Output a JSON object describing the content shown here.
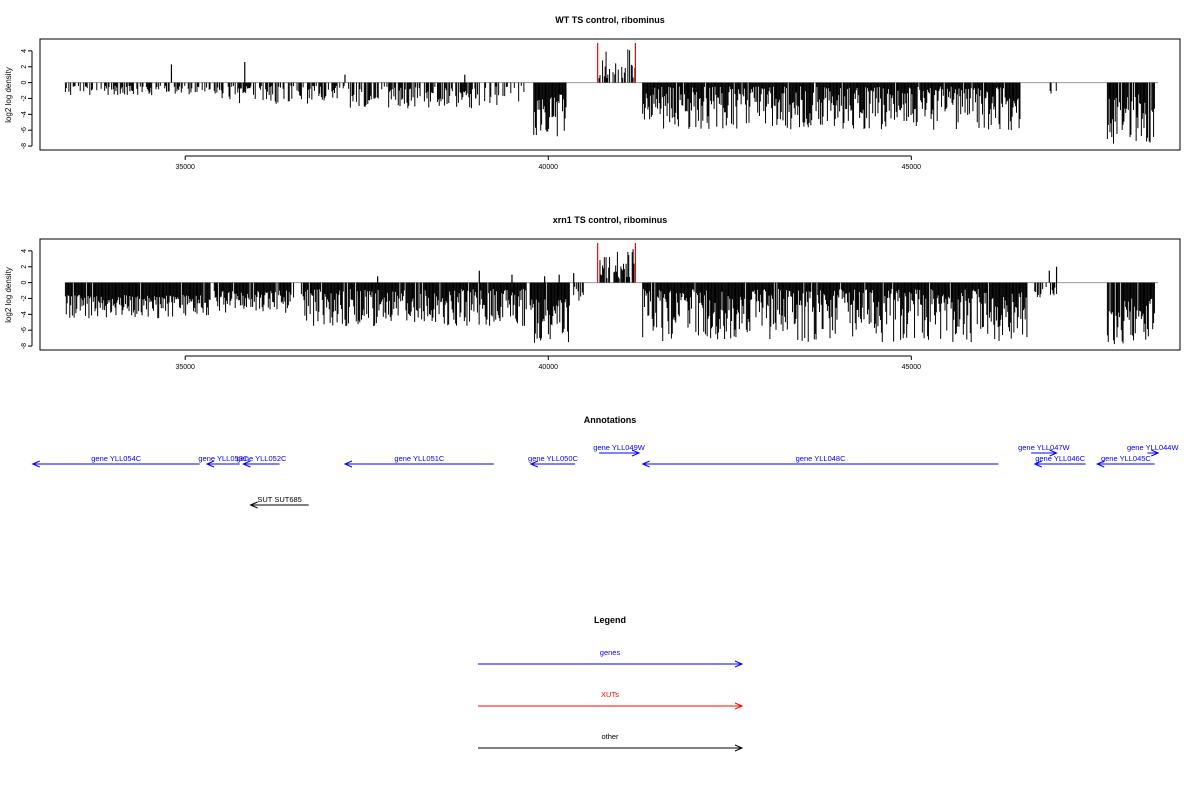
{
  "chart_data": [
    {
      "type": "bar",
      "title": "WT TS control, ribominus",
      "ylabel": "log2 log density",
      "xlabel": "",
      "xlim": [
        33000,
        48700
      ],
      "ylim": [
        -8.5,
        5.5
      ],
      "xticks": [
        35000,
        40000,
        45000
      ],
      "yticks": [
        4,
        2,
        0,
        -2,
        -4,
        -6,
        -8
      ],
      "grid": false,
      "baseline": 0,
      "xut_region": [
        40680,
        41200
      ],
      "xut_color": "#ff0000",
      "bar_color": "#000000",
      "regions": [
        {
          "from": 33350,
          "to": 35350,
          "min": -1.6,
          "max": -0.4,
          "density": 0.55
        },
        {
          "from": 35400,
          "to": 37200,
          "min": -2.8,
          "max": -0.4,
          "density": 0.6
        },
        {
          "from": 37250,
          "to": 39050,
          "min": -3.3,
          "max": -0.5,
          "density": 0.65
        },
        {
          "from": 39100,
          "to": 39700,
          "min": -3.0,
          "max": -0.4,
          "density": 0.4
        },
        {
          "from": 39800,
          "to": 40250,
          "min": -6.8,
          "max": -1.5,
          "density": 0.95
        },
        {
          "from": 40700,
          "to": 41200,
          "min": 0.3,
          "max": 4.5,
          "density": 0.6
        },
        {
          "from": 41300,
          "to": 46500,
          "min": -6.0,
          "max": -0.5,
          "density": 0.95
        },
        {
          "from": 46900,
          "to": 47000,
          "min": -1.8,
          "max": -0.5,
          "density": 0.3
        },
        {
          "from": 47700,
          "to": 48350,
          "min": -7.8,
          "max": -1.5,
          "density": 0.95
        }
      ],
      "spikes": [
        {
          "x": 34810,
          "y": 2.3
        },
        {
          "x": 35820,
          "y": 2.6
        },
        {
          "x": 37200,
          "y": 1.0
        },
        {
          "x": 38850,
          "y": 1.0
        },
        {
          "x": 39000,
          "y": -2.0
        },
        {
          "x": 40680,
          "y": 5.0,
          "xut": true
        },
        {
          "x": 41200,
          "y": 5.0,
          "xut": true
        }
      ]
    },
    {
      "type": "bar",
      "title": "xrn1 TS control, ribominus",
      "ylabel": "log2 log density",
      "xlabel": "",
      "xlim": [
        33000,
        48700
      ],
      "ylim": [
        -8.5,
        5.5
      ],
      "xticks": [
        35000,
        40000,
        45000
      ],
      "yticks": [
        4,
        2,
        0,
        -2,
        -4,
        -6,
        -8
      ],
      "grid": false,
      "baseline": 0,
      "xut_region": [
        40680,
        41200
      ],
      "xut_color": "#ff0000",
      "bar_color": "#000000",
      "regions": [
        {
          "from": 33350,
          "to": 35350,
          "min": -4.5,
          "max": -1.5,
          "density": 0.95
        },
        {
          "from": 35400,
          "to": 36500,
          "min": -3.8,
          "max": -1.0,
          "density": 0.85
        },
        {
          "from": 36600,
          "to": 39700,
          "min": -5.5,
          "max": -0.8,
          "density": 0.95
        },
        {
          "from": 39750,
          "to": 40300,
          "min": -7.8,
          "max": -2.0,
          "density": 0.95
        },
        {
          "from": 40350,
          "to": 40500,
          "min": -2.5,
          "max": -0.5,
          "density": 0.5
        },
        {
          "from": 40700,
          "to": 41200,
          "min": 0.5,
          "max": 4.5,
          "density": 0.7
        },
        {
          "from": 41300,
          "to": 46600,
          "min": -7.5,
          "max": -0.8,
          "density": 0.97
        },
        {
          "from": 46700,
          "to": 47000,
          "min": -2.0,
          "max": -0.5,
          "density": 0.4
        },
        {
          "from": 47700,
          "to": 48350,
          "min": -7.8,
          "max": -2.0,
          "density": 0.95
        }
      ],
      "spikes": [
        {
          "x": 37650,
          "y": 0.8
        },
        {
          "x": 39050,
          "y": 1.5
        },
        {
          "x": 39500,
          "y": 1.0
        },
        {
          "x": 39950,
          "y": 0.8
        },
        {
          "x": 40150,
          "y": 1.0
        },
        {
          "x": 40350,
          "y": 1.2
        },
        {
          "x": 40680,
          "y": 5.0,
          "xut": true
        },
        {
          "x": 41200,
          "y": 5.0,
          "xut": true
        },
        {
          "x": 46900,
          "y": 1.5
        },
        {
          "x": 47000,
          "y": 2.0
        }
      ]
    }
  ],
  "annotations": {
    "title": "Annotations",
    "xlim": [
      33000,
      48700
    ],
    "features": [
      {
        "label": "gene YLL054C",
        "from": 35200,
        "to": 32900,
        "color": "#0000ff",
        "row": 0
      },
      {
        "label": "gene YLL053C",
        "from": 35750,
        "to": 35300,
        "color": "#0000ff",
        "row": 0
      },
      {
        "label": "gene YLL052C",
        "from": 36300,
        "to": 35800,
        "color": "#0000ff",
        "row": 0
      },
      {
        "label": "gene YLL051C",
        "from": 39250,
        "to": 37200,
        "color": "#0000ff",
        "row": 0
      },
      {
        "label": "gene YLL050C",
        "from": 40370,
        "to": 39760,
        "color": "#0000ff",
        "row": 0
      },
      {
        "label": "gene YLL049W",
        "from": 40700,
        "to": 41250,
        "color": "#0000ff",
        "row": -1
      },
      {
        "label": "gene YLL048C",
        "from": 46200,
        "to": 41300,
        "color": "#0000ff",
        "row": 0
      },
      {
        "label": "gene YLL047W",
        "from": 46650,
        "to": 47000,
        "color": "#0000ff",
        "row": -1
      },
      {
        "label": "gene YLL046C",
        "from": 47400,
        "to": 46700,
        "color": "#0000ff",
        "row": 0
      },
      {
        "label": "gene YLL045C",
        "from": 48350,
        "to": 47560,
        "color": "#0000ff",
        "row": 0
      },
      {
        "label": "gene YLL044W",
        "from": 48250,
        "to": 48400,
        "color": "#0000ff",
        "row": -1
      },
      {
        "label": "SUT SUT685",
        "from": 36700,
        "to": 35900,
        "color": "#000000",
        "row": 1
      }
    ]
  },
  "legend": {
    "title": "Legend",
    "items": [
      {
        "label": "genes",
        "color": "#0000ff"
      },
      {
        "label": "XUTs",
        "color": "#ff0000"
      },
      {
        "label": "other",
        "color": "#000000"
      }
    ]
  }
}
